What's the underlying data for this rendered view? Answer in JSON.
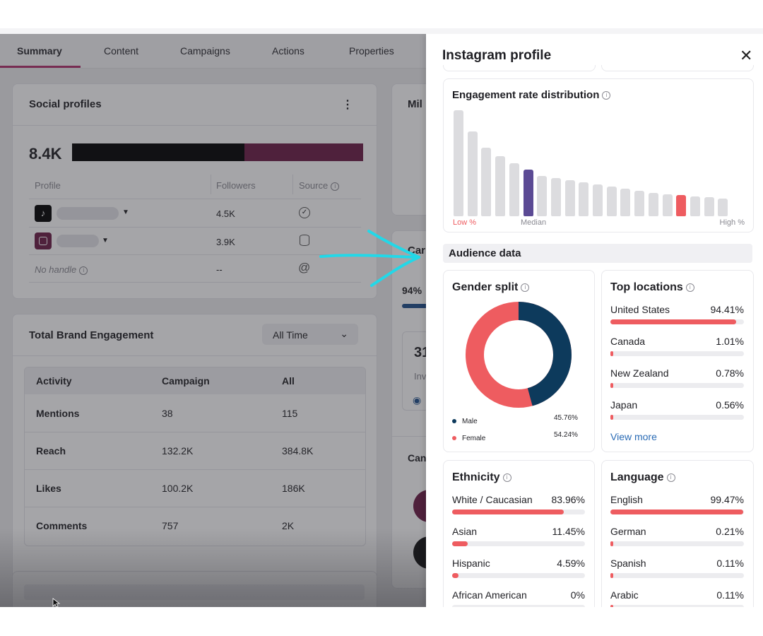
{
  "tabs": [
    "Summary",
    "Content",
    "Campaigns",
    "Actions",
    "Properties"
  ],
  "social": {
    "title": "Social profiles",
    "total": "8.4K",
    "col_profile": "Profile",
    "col_followers": "Followers",
    "col_source": "Source",
    "rows": [
      {
        "followers": "4.5K"
      },
      {
        "followers": "3.9K"
      },
      {
        "handle": "No handle",
        "followers": "--"
      }
    ],
    "split": [
      4.5,
      3.9
    ],
    "colors": {
      "tiktok": "#000000",
      "instagram": "#6b1c45"
    }
  },
  "engagement": {
    "title": "Total Brand Engagement",
    "range": "All Time",
    "headers": [
      "Activity",
      "Campaign",
      "All"
    ],
    "rows": [
      {
        "activity": "Mentions",
        "campaign": "38",
        "all": "115"
      },
      {
        "activity": "Reach",
        "campaign": "132.2K",
        "all": "384.8K"
      },
      {
        "activity": "Likes",
        "campaign": "100.2K",
        "all": "186K"
      },
      {
        "activity": "Comments",
        "campaign": "757",
        "all": "2K"
      }
    ]
  },
  "peek": {
    "mil": "Mil",
    "car": "Car",
    "pct": "94%",
    "num": "31",
    "inv": "Inv",
    "can": "Can"
  },
  "panel": {
    "title": "Instagram profile",
    "erd": {
      "title": "Engagement rate distribution",
      "low": "Low %",
      "median": "Median",
      "high": "High %",
      "bars": [
        100,
        80,
        65,
        57,
        50,
        44,
        38,
        36,
        34,
        32,
        30,
        28,
        26,
        24,
        22,
        21,
        20,
        19,
        18,
        17
      ]
    },
    "audience": "Audience data",
    "gender": {
      "title": "Gender split",
      "male_label": "Male",
      "male_value": "45.76%",
      "female_label": "Female",
      "female_value": "54.24%",
      "male_pct": 45.76,
      "female_pct": 54.24,
      "male_color": "#0d3a5c",
      "female_color": "#ee5c60"
    },
    "locations": {
      "title": "Top locations",
      "items": [
        {
          "label": "United States",
          "value": "94.41%",
          "pct": 94.41
        },
        {
          "label": "Canada",
          "value": "1.01%",
          "pct": 1.01
        },
        {
          "label": "New Zealand",
          "value": "0.78%",
          "pct": 0.78
        },
        {
          "label": "Japan",
          "value": "0.56%",
          "pct": 0.56
        }
      ],
      "more": "View more"
    },
    "ethnicity": {
      "title": "Ethnicity",
      "items": [
        {
          "label": "White / Caucasian",
          "value": "83.96%",
          "pct": 83.96
        },
        {
          "label": "Asian",
          "value": "11.45%",
          "pct": 11.45
        },
        {
          "label": "Hispanic",
          "value": "4.59%",
          "pct": 4.59
        },
        {
          "label": "African American",
          "value": "0%",
          "pct": 0
        }
      ]
    },
    "language": {
      "title": "Language",
      "items": [
        {
          "label": "English",
          "value": "99.47%",
          "pct": 99.47
        },
        {
          "label": "German",
          "value": "0.21%",
          "pct": 0.21
        },
        {
          "label": "Spanish",
          "value": "0.11%",
          "pct": 0.11
        },
        {
          "label": "Arabic",
          "value": "0.11%",
          "pct": 0.11
        }
      ]
    }
  }
}
